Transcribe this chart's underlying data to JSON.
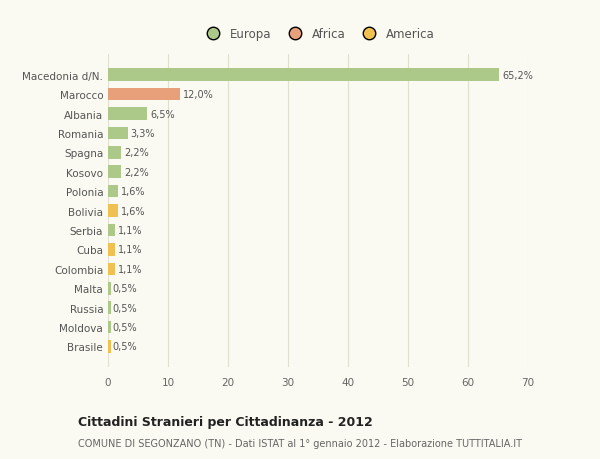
{
  "categories": [
    "Brasile",
    "Moldova",
    "Russia",
    "Malta",
    "Colombia",
    "Cuba",
    "Serbia",
    "Bolivia",
    "Polonia",
    "Kosovo",
    "Spagna",
    "Romania",
    "Albania",
    "Marocco",
    "Macedonia d/N."
  ],
  "values": [
    0.5,
    0.5,
    0.5,
    0.5,
    1.1,
    1.1,
    1.1,
    1.6,
    1.6,
    2.2,
    2.2,
    3.3,
    6.5,
    12.0,
    65.2
  ],
  "labels": [
    "0,5%",
    "0,5%",
    "0,5%",
    "0,5%",
    "1,1%",
    "1,1%",
    "1,1%",
    "1,6%",
    "1,6%",
    "2,2%",
    "2,2%",
    "3,3%",
    "6,5%",
    "12,0%",
    "65,2%"
  ],
  "colors": [
    "#f0c050",
    "#adc98a",
    "#adc98a",
    "#adc98a",
    "#f0c050",
    "#f0c050",
    "#adc98a",
    "#f0c050",
    "#adc98a",
    "#adc98a",
    "#adc98a",
    "#adc98a",
    "#adc98a",
    "#e8a07a",
    "#adc98a"
  ],
  "legend": [
    {
      "label": "Europa",
      "color": "#adc98a"
    },
    {
      "label": "Africa",
      "color": "#e8a07a"
    },
    {
      "label": "America",
      "color": "#f0c050"
    }
  ],
  "xlim": [
    0,
    70
  ],
  "xticks": [
    0,
    10,
    20,
    30,
    40,
    50,
    60,
    70
  ],
  "title_bold": "Cittadini Stranieri per Cittadinanza - 2012",
  "subtitle": "COMUNE DI SEGONZANO (TN) - Dati ISTAT al 1° gennaio 2012 - Elaborazione TUTTITALIA.IT",
  "background_color": "#fafaf2",
  "bar_height": 0.65,
  "grid_color": "#e0e0d0"
}
